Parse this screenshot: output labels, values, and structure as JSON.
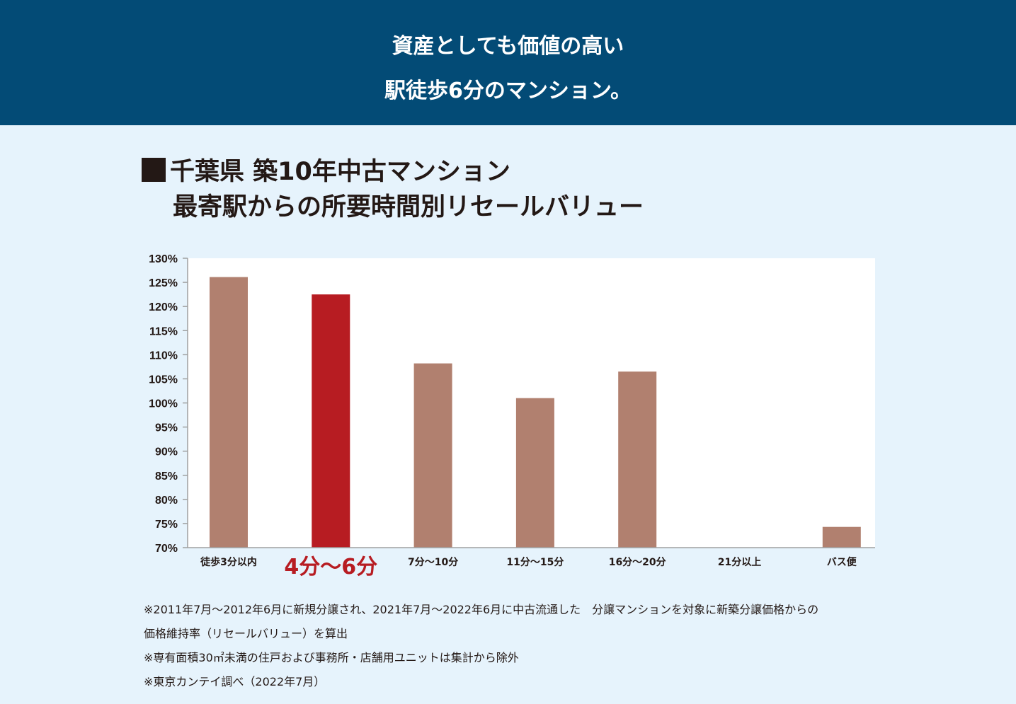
{
  "banner": {
    "line1": "資産としても価値の高い",
    "line2": "駅徒歩6分のマンション。"
  },
  "chart_data": {
    "type": "bar",
    "title_line1": "千葉県 築10年中古マンション",
    "title_line2": "最寄駅からの所要時間別リセールバリュー",
    "categories": [
      "徒歩3分以内",
      "4分～6分",
      "7分～10分",
      "11分～15分",
      "16分～20分",
      "21分以上",
      "バス便"
    ],
    "values": [
      126.1,
      122.5,
      108.2,
      101.0,
      106.5,
      null,
      74.3
    ],
    "highlight_index": 1,
    "ylim": [
      70,
      130
    ],
    "yticks": [
      "130%",
      "125%",
      "120%",
      "115%",
      "110%",
      "105%",
      "100%",
      "95%",
      "90%",
      "85%",
      "80%",
      "75%",
      "70%"
    ],
    "bar_color": "#b1806f",
    "highlight_color": "#b71c22",
    "axis_color": "#9fa0a0"
  },
  "notes": [
    "※2011年7月～2012年6月に新規分譲され、2021年7月～2022年6月に中古流通した　分譲マンションを対象に新築分譲価格からの",
    "価格維持率（リセールバリュー）を算出",
    "※専有面積30㎡未満の住戸および事務所・店舗用ユニットは集計から除外",
    "※東京カンテイ調べ（2022年7月）"
  ]
}
